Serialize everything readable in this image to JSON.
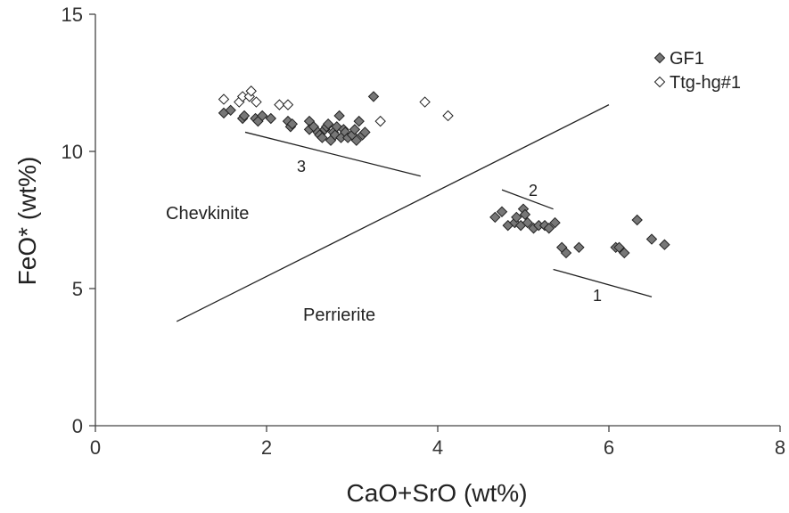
{
  "chart_data": {
    "type": "scatter",
    "xlabel": "CaO+SrO (wt%)",
    "ylabel": "FeO* (wt%)",
    "xlim": [
      0,
      8
    ],
    "ylim": [
      0,
      15
    ],
    "xticks": [
      "0",
      "2",
      "4",
      "6",
      "8"
    ],
    "yticks": [
      "0",
      "5",
      "10",
      "15"
    ],
    "grid": false,
    "legend_position": "top-right",
    "colors": {
      "gf1_fill": "#777777",
      "ttg_fill": "#ffffff",
      "marker_stroke": "#222222",
      "line": "#222222"
    },
    "series": [
      {
        "name": "GF1",
        "marker": "filled-diamond",
        "points": [
          [
            1.5,
            11.4
          ],
          [
            1.58,
            11.5
          ],
          [
            1.72,
            11.2
          ],
          [
            1.74,
            11.3
          ],
          [
            1.87,
            11.2
          ],
          [
            1.9,
            11.1
          ],
          [
            1.95,
            11.3
          ],
          [
            2.05,
            11.2
          ],
          [
            2.25,
            11.1
          ],
          [
            2.28,
            10.9
          ],
          [
            2.3,
            11.0
          ],
          [
            2.5,
            11.1
          ],
          [
            2.5,
            10.8
          ],
          [
            2.55,
            10.9
          ],
          [
            2.6,
            10.7
          ],
          [
            2.62,
            10.6
          ],
          [
            2.65,
            10.5
          ],
          [
            2.68,
            10.8
          ],
          [
            2.7,
            10.9
          ],
          [
            2.72,
            11.0
          ],
          [
            2.75,
            10.4
          ],
          [
            2.78,
            10.7
          ],
          [
            2.8,
            10.6
          ],
          [
            2.82,
            10.9
          ],
          [
            2.85,
            11.3
          ],
          [
            2.87,
            10.5
          ],
          [
            2.9,
            10.8
          ],
          [
            2.92,
            10.7
          ],
          [
            2.95,
            10.5
          ],
          [
            3.0,
            10.6
          ],
          [
            3.03,
            10.8
          ],
          [
            3.05,
            10.4
          ],
          [
            3.08,
            11.1
          ],
          [
            3.12,
            10.6
          ],
          [
            3.15,
            10.7
          ],
          [
            3.25,
            12.0
          ],
          [
            4.67,
            7.6
          ],
          [
            4.75,
            7.8
          ],
          [
            4.82,
            7.3
          ],
          [
            4.9,
            7.4
          ],
          [
            4.92,
            7.6
          ],
          [
            4.97,
            7.3
          ],
          [
            5.0,
            7.9
          ],
          [
            5.02,
            7.7
          ],
          [
            5.05,
            7.4
          ],
          [
            5.12,
            7.2
          ],
          [
            5.18,
            7.3
          ],
          [
            5.25,
            7.3
          ],
          [
            5.3,
            7.2
          ],
          [
            5.37,
            7.4
          ],
          [
            5.45,
            6.5
          ],
          [
            5.5,
            6.3
          ],
          [
            5.65,
            6.5
          ],
          [
            6.08,
            6.5
          ],
          [
            6.12,
            6.5
          ],
          [
            6.18,
            6.3
          ],
          [
            6.33,
            7.5
          ],
          [
            6.5,
            6.8
          ],
          [
            6.65,
            6.6
          ]
        ]
      },
      {
        "name": "Ttg-hg#1",
        "marker": "open-diamond",
        "points": [
          [
            1.5,
            11.9
          ],
          [
            1.68,
            11.8
          ],
          [
            1.72,
            12.0
          ],
          [
            1.8,
            12.0
          ],
          [
            1.82,
            12.2
          ],
          [
            1.88,
            11.8
          ],
          [
            2.15,
            11.7
          ],
          [
            2.25,
            11.7
          ],
          [
            3.33,
            11.1
          ],
          [
            3.85,
            11.8
          ],
          [
            4.12,
            11.3
          ]
        ]
      }
    ],
    "lines": [
      {
        "label": "",
        "x": [
          0.95,
          6.0
        ],
        "y": [
          3.8,
          11.7
        ]
      },
      {
        "label": "3",
        "x": [
          1.75,
          3.8
        ],
        "y": [
          10.7,
          9.1
        ]
      },
      {
        "label": "2",
        "x": [
          4.75,
          5.35
        ],
        "y": [
          8.6,
          7.9
        ]
      },
      {
        "label": "1",
        "x": [
          5.35,
          6.5
        ],
        "y": [
          5.7,
          4.7
        ]
      }
    ],
    "annotations": [
      "Chevkinite",
      "Perrierite"
    ]
  }
}
